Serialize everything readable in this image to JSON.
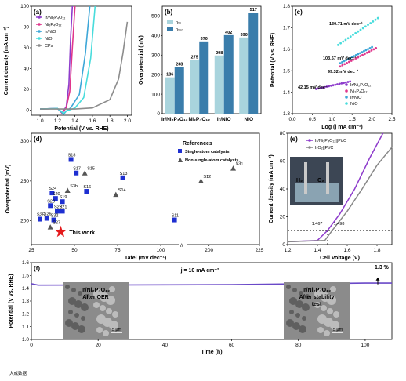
{
  "chart_data": [
    {
      "panel": "(a)",
      "type": "line",
      "xlabel": "Potential (V vs. RHE)",
      "ylabel": "Current density (mA cm⁻²)",
      "xlim": [
        0.9,
        2.05
      ],
      "ylim": [
        -5,
        100
      ],
      "xticks": [
        "1.0",
        "1.2",
        "1.4",
        "1.6",
        "1.8",
        "2.0"
      ],
      "yticks": [
        "0",
        "20",
        "40",
        "60",
        "80",
        "100"
      ],
      "series": [
        {
          "name": "Ir/Ni₂P₄O₁₂",
          "color": "#8e3ccc",
          "x": [
            1.0,
            1.2,
            1.25,
            1.27,
            1.3,
            1.33,
            1.35,
            1.37
          ],
          "y": [
            1,
            1.5,
            -2,
            0,
            3,
            25,
            70,
            100
          ]
        },
        {
          "name": "Ni₂P₄O₁₂",
          "color": "#e0368c",
          "x": [
            1.0,
            1.2,
            1.25,
            1.28,
            1.3,
            1.34,
            1.37,
            1.4
          ],
          "y": [
            1,
            1.5,
            -3,
            0,
            2,
            18,
            60,
            100
          ]
        },
        {
          "name": "Ir/NiO",
          "color": "#3ea7d8",
          "x": [
            1.0,
            1.2,
            1.27,
            1.3,
            1.35,
            1.45,
            1.52,
            1.57
          ],
          "y": [
            1,
            1.5,
            -4,
            -1,
            2,
            15,
            55,
            100
          ]
        },
        {
          "name": "NiO",
          "color": "#48dcdc",
          "x": [
            1.0,
            1.2,
            1.27,
            1.3,
            1.4,
            1.5,
            1.58,
            1.63
          ],
          "y": [
            1,
            1.5,
            -3,
            -1,
            2,
            12,
            50,
            100
          ]
        },
        {
          "name": "CPs",
          "color": "#8c8c8c",
          "x": [
            1.0,
            1.4,
            1.6,
            1.8,
            1.9,
            1.95,
            2.0
          ],
          "y": [
            1,
            1,
            2,
            10,
            30,
            55,
            85
          ]
        }
      ]
    },
    {
      "panel": "(b)",
      "type": "bar",
      "ylabel": "Overpotential (mV)",
      "ylim": [
        0,
        550
      ],
      "yticks": [
        "0",
        "100",
        "200",
        "300",
        "400",
        "500"
      ],
      "categories": [
        "Ir/Ni₂P₄O₁₂",
        "Ni₂P₄O₁₂",
        "Ir/NiO",
        "NiO"
      ],
      "series": [
        {
          "name": "η₁₀",
          "color": "#a9d4dd",
          "values": [
            186,
            275,
            298,
            390
          ]
        },
        {
          "name": "η₁₀₀",
          "color": "#3a7dab",
          "values": [
            238,
            370,
            402,
            517
          ]
        }
      ]
    },
    {
      "panel": "(c)",
      "type": "scatter",
      "xlabel": "Log (j mA cm⁻²)",
      "ylabel": "Potential (V vs. RHE)",
      "xlim": [
        0.0,
        2.5
      ],
      "ylim": [
        1.3,
        1.8
      ],
      "xticks": [
        "0.0",
        "0.5",
        "1.0",
        "1.5",
        "2.0",
        "2.5"
      ],
      "yticks": [
        "1.3",
        "1.4",
        "1.5",
        "1.6",
        "1.7",
        "1.8"
      ],
      "annotations": [
        "130.71 mV dec⁻¹",
        "103.67 mV dec⁻¹",
        "99.32 mV dec⁻¹",
        "42.15 mV dec⁻¹"
      ],
      "series": [
        {
          "name": "Ir/Ni₂P₄O₁₂",
          "color": "#8e3ccc",
          "x": [
            0.6,
            1.45
          ],
          "y": [
            1.415,
            1.45
          ]
        },
        {
          "name": "Ni₂P₄O₁₂",
          "color": "#e0368c",
          "x": [
            1.2,
            2.1
          ],
          "y": [
            1.52,
            1.605
          ]
        },
        {
          "name": "Ir/NiO",
          "color": "#3ea7d8",
          "x": [
            1.2,
            2.0
          ],
          "y": [
            1.535,
            1.61
          ]
        },
        {
          "name": "NiO",
          "color": "#48dcdc",
          "x": [
            1.15,
            2.15
          ],
          "y": [
            1.62,
            1.745
          ]
        }
      ]
    },
    {
      "panel": "(d)",
      "type": "scatter",
      "xlabel": "Tafel (mV dec⁻¹)",
      "ylabel": "Overpotential (mV)",
      "xlim": [
        25,
        225
      ],
      "ylim": [
        170,
        310
      ],
      "xticks": [
        "25",
        "50",
        "75",
        "100",
        "200",
        "225"
      ],
      "yticks": [
        "200",
        "250",
        "300"
      ],
      "legend_title": "References",
      "legend": [
        "Single-atom catalysts",
        "Non-single-atom catalysts"
      ],
      "highlight": {
        "label": "This work",
        "x": 42,
        "y": 186
      },
      "single": [
        {
          "l": "S18",
          "x": 48,
          "y": 277
        },
        {
          "l": "S17",
          "x": 51,
          "y": 260
        },
        {
          "l": "S13",
          "x": 78,
          "y": 254
        },
        {
          "l": "S16",
          "x": 57,
          "y": 237
        },
        {
          "l": "S24",
          "x": 37,
          "y": 235
        },
        {
          "l": "S20",
          "x": 39,
          "y": 228
        },
        {
          "l": "S19",
          "x": 43,
          "y": 224
        },
        {
          "l": "S23",
          "x": 36,
          "y": 219
        },
        {
          "l": "S22",
          "x": 40,
          "y": 212
        },
        {
          "l": "S21",
          "x": 43,
          "y": 212
        },
        {
          "l": "S25",
          "x": 30,
          "y": 202
        },
        {
          "l": "S26",
          "x": 34,
          "y": 203
        },
        {
          "l": "S32",
          "x": 38,
          "y": 201
        },
        {
          "l": "S11",
          "x": 108,
          "y": 201
        }
      ],
      "non_single": [
        {
          "l": "S15",
          "x": 56,
          "y": 260
        },
        {
          "l": "S3b",
          "x": 46,
          "y": 238
        },
        {
          "l": "S14",
          "x": 74,
          "y": 233
        },
        {
          "l": "S12",
          "x": 196,
          "y": 250
        },
        {
          "l": "S3c",
          "x": 212,
          "y": 266
        },
        {
          "l": "S27",
          "x": 36,
          "y": 192
        }
      ]
    },
    {
      "panel": "(e)",
      "type": "line",
      "xlabel": "Cell Voltage (V)",
      "ylabel": "Current density (mA cm⁻²)",
      "xlim": [
        1.2,
        1.9
      ],
      "ylim": [
        0,
        80
      ],
      "xticks": [
        "1.2",
        "1.4",
        "1.6",
        "1.8"
      ],
      "yticks": [
        "0",
        "20",
        "40",
        "60",
        "80"
      ],
      "annotations": [
        "1.467",
        "1.498",
        "H₂",
        "O₂"
      ],
      "series": [
        {
          "name": "Ir/Ni₂P₄O₁₂||Pt/C",
          "color": "#8e3ccc",
          "x": [
            1.2,
            1.4,
            1.467,
            1.55,
            1.65,
            1.75,
            1.84
          ],
          "y": [
            2,
            3,
            10,
            22,
            40,
            62,
            80
          ]
        },
        {
          "name": "IrO₂||Pt/C",
          "color": "#888888",
          "x": [
            1.2,
            1.45,
            1.498,
            1.6,
            1.7,
            1.8,
            1.9
          ],
          "y": [
            2,
            3,
            10,
            24,
            40,
            57,
            70
          ]
        }
      ]
    },
    {
      "panel": "(f)",
      "type": "line",
      "xlabel": "Time (h)",
      "ylabel": "Potential (V vs. RHE)",
      "xlim": [
        0,
        108
      ],
      "ylim": [
        1.0,
        1.6
      ],
      "xticks": [
        "0",
        "20",
        "40",
        "60",
        "80",
        "100"
      ],
      "yticks": [
        "1.0",
        "1.1",
        "1.2",
        "1.3",
        "1.4",
        "1.5",
        "1.6"
      ],
      "annotation": "j = 10 mA cm⁻²",
      "change": "1.3 %",
      "inset_left": {
        "line1": "Ir/Ni₂P₄O₁₂",
        "line2": "After OER",
        "scale": "5 μm"
      },
      "inset_right": {
        "line1": "Ir/Ni₂P₄O₁₂",
        "line2": "After stability",
        "line3": "test",
        "scale": "5 μm"
      },
      "series": [
        {
          "name": "stability",
          "color": "#6a49c8",
          "x": [
            0,
            2,
            20,
            60,
            100,
            108
          ],
          "y": [
            1.435,
            1.424,
            1.425,
            1.428,
            1.44,
            1.44
          ]
        }
      ]
    }
  ],
  "watermark": "大成数据"
}
